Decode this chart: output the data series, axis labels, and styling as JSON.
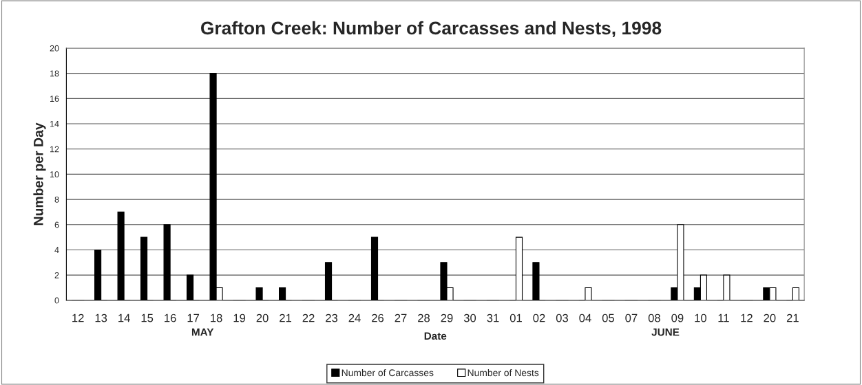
{
  "chart_data": {
    "type": "bar",
    "title": "Grafton Creek: Number of Carcasses and Nests, 1998",
    "xlabel": "Date",
    "ylabel": "Number per Day",
    "categories": [
      "12",
      "13",
      "14",
      "15",
      "16",
      "17",
      "18",
      "19",
      "20",
      "21",
      "22",
      "23",
      "24",
      "26",
      "27",
      "28",
      "29",
      "30",
      "31",
      "01",
      "02",
      "03",
      "04",
      "05",
      "07",
      "08",
      "09",
      "10",
      "11",
      "12",
      "20",
      "21"
    ],
    "series": [
      {
        "name": "Number of Carcasses",
        "color": "#000000",
        "values": [
          0,
          4,
          7,
          5,
          6,
          2,
          18,
          0,
          1,
          1,
          0,
          3,
          0,
          5,
          0,
          0,
          3,
          0,
          0,
          0,
          3,
          0,
          0,
          0,
          0,
          0,
          1,
          1,
          0,
          0,
          1,
          0
        ]
      },
      {
        "name": "Number of Nests",
        "color": "#ffffff",
        "values": [
          0,
          0,
          0,
          0,
          0,
          0,
          1,
          0,
          0,
          0,
          0,
          0,
          0,
          0,
          0,
          0,
          1,
          0,
          0,
          5,
          0,
          0,
          1,
          0,
          0,
          0,
          6,
          2,
          2,
          0,
          1,
          1
        ]
      }
    ],
    "annotations": [
      "MAY",
      "JUNE"
    ],
    "ylim": [
      0,
      20
    ],
    "yticks": [
      0,
      2,
      4,
      6,
      8,
      10,
      12,
      14,
      16,
      18,
      20
    ],
    "grid": "y",
    "legend": "bottom"
  }
}
